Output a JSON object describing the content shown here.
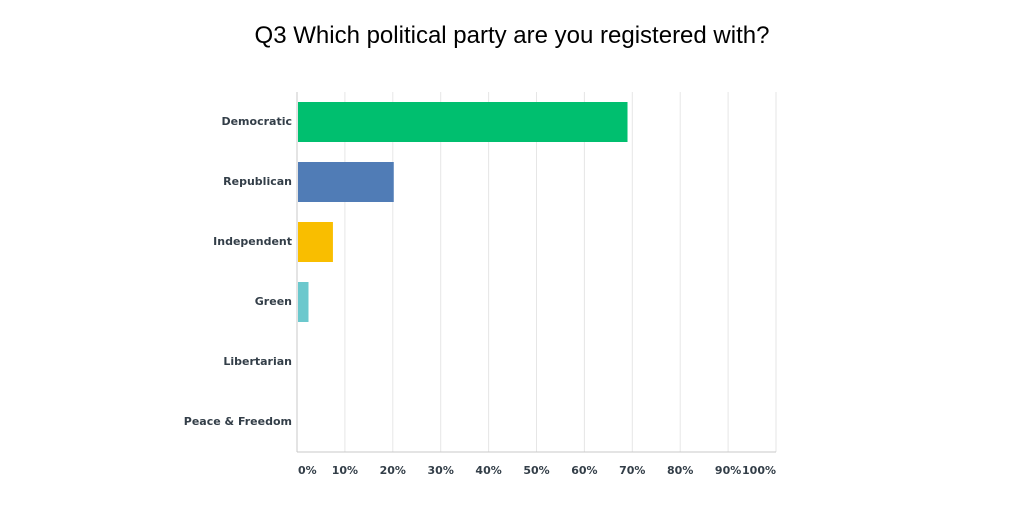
{
  "chart_data": {
    "type": "bar",
    "orientation": "horizontal",
    "title": "Q3 Which political party are you registered with?",
    "categories": [
      "Democratic",
      "Republican",
      "Independent",
      "Green",
      "Libertarian",
      "Peace & Freedom"
    ],
    "values": [
      69.0,
      20.2,
      7.5,
      2.4,
      0,
      0
    ],
    "colors": [
      "#00bf6f",
      "#507cb6",
      "#f9be00",
      "#6bc8cd",
      "#ff8b4f",
      "#7f7fff"
    ],
    "xlim": [
      0,
      100
    ],
    "xticks": [
      "0%",
      "10%",
      "20%",
      "30%",
      "40%",
      "50%",
      "60%",
      "70%",
      "80%",
      "90%",
      "100%"
    ],
    "grid": true,
    "legend": "none"
  }
}
